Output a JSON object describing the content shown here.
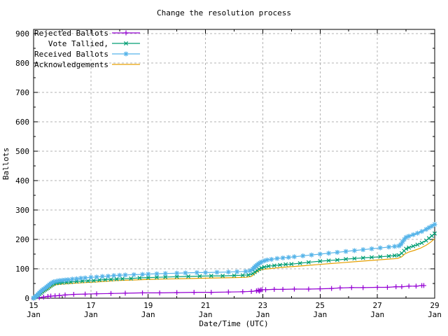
{
  "window": {
    "background": "#ffffff"
  },
  "chart_data": {
    "type": "line",
    "title": "Change the resolution process",
    "xlabel": "Date/Time (UTC)",
    "ylabel": "Ballots",
    "xlim": [
      15,
      29
    ],
    "ylim": [
      0,
      914
    ],
    "grid": true,
    "grid_color": "#b3b3b3",
    "border_color": "#000000",
    "legend_position": "top-left-inside",
    "y_ticks": [
      0,
      100,
      200,
      300,
      400,
      500,
      600,
      700,
      800,
      900
    ],
    "y_minor_step": 50,
    "x_ticks": [
      {
        "day": 15,
        "num": "15",
        "month": "Jan"
      },
      {
        "day": 17,
        "num": "17",
        "month": "Jan"
      },
      {
        "day": 19,
        "num": "19",
        "month": "Jan"
      },
      {
        "day": 21,
        "num": "21",
        "month": "Jan"
      },
      {
        "day": 23,
        "num": "23",
        "month": "Jan"
      },
      {
        "day": 25,
        "num": "25",
        "month": "Jan"
      },
      {
        "day": 27,
        "num": "27",
        "month": "Jan"
      },
      {
        "day": 29,
        "num": "29",
        "month": "Jan"
      }
    ],
    "x_minor_days": [
      16,
      18,
      20,
      22,
      24,
      26,
      28
    ],
    "series": [
      {
        "name": "Rejected Ballots",
        "color": "#9400d3",
        "marker": "plus",
        "points": [
          [
            15,
            0
          ],
          [
            15.2,
            2
          ],
          [
            15.35,
            4
          ],
          [
            15.5,
            6
          ],
          [
            15.6,
            7
          ],
          [
            15.75,
            8
          ],
          [
            15.9,
            9
          ],
          [
            16.1,
            11
          ],
          [
            16.4,
            13
          ],
          [
            16.8,
            14
          ],
          [
            17.2,
            15
          ],
          [
            17.7,
            16
          ],
          [
            18.2,
            17
          ],
          [
            18.8,
            18
          ],
          [
            19.4,
            18
          ],
          [
            20,
            19
          ],
          [
            20.6,
            20
          ],
          [
            21.2,
            20
          ],
          [
            21.8,
            21
          ],
          [
            22.3,
            22
          ],
          [
            22.6,
            23
          ],
          [
            22.78,
            25
          ],
          [
            22.84,
            27
          ],
          [
            22.88,
            24
          ],
          [
            22.92,
            28
          ],
          [
            22.97,
            29
          ],
          [
            23.1,
            29
          ],
          [
            23.4,
            30
          ],
          [
            23.7,
            30
          ],
          [
            24.1,
            31
          ],
          [
            24.6,
            31
          ],
          [
            25,
            32
          ],
          [
            25.4,
            33
          ],
          [
            25.7,
            35
          ],
          [
            26.1,
            36
          ],
          [
            26.5,
            36
          ],
          [
            27,
            37
          ],
          [
            27.35,
            37
          ],
          [
            27.65,
            39
          ],
          [
            27.85,
            39
          ],
          [
            28.1,
            41
          ],
          [
            28.35,
            41
          ],
          [
            28.55,
            43
          ],
          [
            28.62,
            43
          ]
        ]
      },
      {
        "name": "Vote Tallied,",
        "color": "#009e73",
        "marker": "cross",
        "points": [
          [
            15,
            0
          ],
          [
            15.05,
            3
          ],
          [
            15.1,
            6
          ],
          [
            15.15,
            10
          ],
          [
            15.2,
            14
          ],
          [
            15.25,
            18
          ],
          [
            15.3,
            22
          ],
          [
            15.35,
            26
          ],
          [
            15.4,
            29
          ],
          [
            15.45,
            32
          ],
          [
            15.5,
            35
          ],
          [
            15.55,
            39
          ],
          [
            15.6,
            43
          ],
          [
            15.65,
            46
          ],
          [
            15.7,
            49
          ],
          [
            15.8,
            51
          ],
          [
            15.9,
            52
          ],
          [
            16,
            53
          ],
          [
            16.15,
            54
          ],
          [
            16.3,
            55
          ],
          [
            16.5,
            57
          ],
          [
            16.7,
            58
          ],
          [
            16.9,
            59
          ],
          [
            17.1,
            60
          ],
          [
            17.3,
            62
          ],
          [
            17.5,
            63
          ],
          [
            17.7,
            64
          ],
          [
            17.9,
            65
          ],
          [
            18.1,
            66
          ],
          [
            18.4,
            67
          ],
          [
            18.7,
            69
          ],
          [
            19,
            70
          ],
          [
            19.3,
            71
          ],
          [
            19.6,
            72
          ],
          [
            20,
            73
          ],
          [
            20.4,
            74
          ],
          [
            20.8,
            75
          ],
          [
            21.2,
            76
          ],
          [
            21.6,
            76
          ],
          [
            22,
            77
          ],
          [
            22.3,
            78
          ],
          [
            22.5,
            79
          ],
          [
            22.65,
            84
          ],
          [
            22.72,
            89
          ],
          [
            22.8,
            94
          ],
          [
            22.87,
            99
          ],
          [
            22.95,
            103
          ],
          [
            23.05,
            106
          ],
          [
            23.2,
            109
          ],
          [
            23.4,
            111
          ],
          [
            23.6,
            113
          ],
          [
            23.8,
            115
          ],
          [
            24,
            116
          ],
          [
            24.3,
            119
          ],
          [
            24.6,
            122
          ],
          [
            25,
            126
          ],
          [
            25.3,
            128
          ],
          [
            25.6,
            130
          ],
          [
            25.9,
            133
          ],
          [
            26.2,
            135
          ],
          [
            26.5,
            137
          ],
          [
            26.8,
            139
          ],
          [
            27.1,
            141
          ],
          [
            27.4,
            143
          ],
          [
            27.6,
            145
          ],
          [
            27.75,
            146
          ],
          [
            27.85,
            153
          ],
          [
            27.93,
            161
          ],
          [
            28,
            168
          ],
          [
            28.1,
            172
          ],
          [
            28.25,
            177
          ],
          [
            28.4,
            182
          ],
          [
            28.55,
            188
          ],
          [
            28.7,
            196
          ],
          [
            28.8,
            204
          ],
          [
            28.9,
            212
          ],
          [
            29,
            220
          ]
        ]
      },
      {
        "name": "Received Ballots",
        "color": "#56b4e9",
        "marker": "star",
        "points": [
          [
            15,
            1
          ],
          [
            15.05,
            4
          ],
          [
            15.1,
            8
          ],
          [
            15.15,
            13
          ],
          [
            15.2,
            18
          ],
          [
            15.25,
            23
          ],
          [
            15.3,
            27
          ],
          [
            15.35,
            31
          ],
          [
            15.4,
            34
          ],
          [
            15.45,
            38
          ],
          [
            15.5,
            42
          ],
          [
            15.55,
            46
          ],
          [
            15.6,
            50
          ],
          [
            15.65,
            53
          ],
          [
            15.7,
            56
          ],
          [
            15.8,
            58
          ],
          [
            15.9,
            60
          ],
          [
            16,
            61
          ],
          [
            16.1,
            62
          ],
          [
            16.2,
            63
          ],
          [
            16.35,
            65
          ],
          [
            16.5,
            66
          ],
          [
            16.65,
            68
          ],
          [
            16.8,
            69
          ],
          [
            17,
            71
          ],
          [
            17.2,
            72
          ],
          [
            17.4,
            74
          ],
          [
            17.6,
            75
          ],
          [
            17.8,
            77
          ],
          [
            18,
            78
          ],
          [
            18.2,
            79
          ],
          [
            18.5,
            80
          ],
          [
            18.8,
            81
          ],
          [
            19,
            82
          ],
          [
            19.3,
            83
          ],
          [
            19.6,
            84
          ],
          [
            20,
            85
          ],
          [
            20.3,
            86
          ],
          [
            20.7,
            87
          ],
          [
            21,
            87
          ],
          [
            21.4,
            88
          ],
          [
            21.8,
            89
          ],
          [
            22.1,
            90
          ],
          [
            22.4,
            91
          ],
          [
            22.55,
            93
          ],
          [
            22.65,
            99
          ],
          [
            22.7,
            104
          ],
          [
            22.75,
            109
          ],
          [
            22.8,
            113
          ],
          [
            22.85,
            117
          ],
          [
            22.9,
            120
          ],
          [
            22.95,
            123
          ],
          [
            23.05,
            127
          ],
          [
            23.15,
            130
          ],
          [
            23.3,
            132
          ],
          [
            23.5,
            135
          ],
          [
            23.7,
            137
          ],
          [
            23.9,
            139
          ],
          [
            24.1,
            141
          ],
          [
            24.4,
            144
          ],
          [
            24.7,
            147
          ],
          [
            25,
            150
          ],
          [
            25.3,
            153
          ],
          [
            25.6,
            156
          ],
          [
            25.9,
            159
          ],
          [
            26.2,
            162
          ],
          [
            26.5,
            165
          ],
          [
            26.8,
            168
          ],
          [
            27.1,
            171
          ],
          [
            27.4,
            174
          ],
          [
            27.6,
            176
          ],
          [
            27.75,
            178
          ],
          [
            27.82,
            183
          ],
          [
            27.88,
            192
          ],
          [
            27.94,
            200
          ],
          [
            28,
            207
          ],
          [
            28.1,
            211
          ],
          [
            28.25,
            216
          ],
          [
            28.4,
            221
          ],
          [
            28.55,
            227
          ],
          [
            28.7,
            234
          ],
          [
            28.8,
            240
          ],
          [
            28.9,
            245
          ],
          [
            29,
            251
          ]
        ]
      },
      {
        "name": "Acknowledgements",
        "color": "#e69f00",
        "marker": "none",
        "points": [
          [
            15,
            0
          ],
          [
            15.1,
            4
          ],
          [
            15.2,
            10
          ],
          [
            15.3,
            17
          ],
          [
            15.4,
            24
          ],
          [
            15.5,
            30
          ],
          [
            15.6,
            37
          ],
          [
            15.7,
            43
          ],
          [
            15.8,
            46
          ],
          [
            15.9,
            47
          ],
          [
            16,
            48
          ],
          [
            16.2,
            49
          ],
          [
            16.4,
            51
          ],
          [
            16.6,
            52
          ],
          [
            16.8,
            53
          ],
          [
            17,
            54
          ],
          [
            17.3,
            56
          ],
          [
            17.6,
            58
          ],
          [
            17.9,
            60
          ],
          [
            18.2,
            61
          ],
          [
            18.5,
            62
          ],
          [
            18.8,
            63
          ],
          [
            19.1,
            64
          ],
          [
            19.5,
            65
          ],
          [
            20,
            66
          ],
          [
            20.5,
            67
          ],
          [
            21,
            68
          ],
          [
            21.5,
            69
          ],
          [
            22,
            70
          ],
          [
            22.4,
            71
          ],
          [
            22.6,
            74
          ],
          [
            22.7,
            82
          ],
          [
            22.8,
            90
          ],
          [
            22.9,
            95
          ],
          [
            23,
            98
          ],
          [
            23.2,
            100
          ],
          [
            23.5,
            103
          ],
          [
            23.8,
            106
          ],
          [
            24.1,
            108
          ],
          [
            24.5,
            111
          ],
          [
            25,
            115
          ],
          [
            25.4,
            118
          ],
          [
            25.8,
            121
          ],
          [
            26.2,
            124
          ],
          [
            26.6,
            127
          ],
          [
            27,
            130
          ],
          [
            27.4,
            133
          ],
          [
            27.7,
            135
          ],
          [
            27.85,
            141
          ],
          [
            27.95,
            150
          ],
          [
            28.1,
            157
          ],
          [
            28.3,
            163
          ],
          [
            28.5,
            170
          ],
          [
            28.7,
            180
          ],
          [
            28.85,
            190
          ],
          [
            29,
            202
          ]
        ]
      }
    ]
  }
}
